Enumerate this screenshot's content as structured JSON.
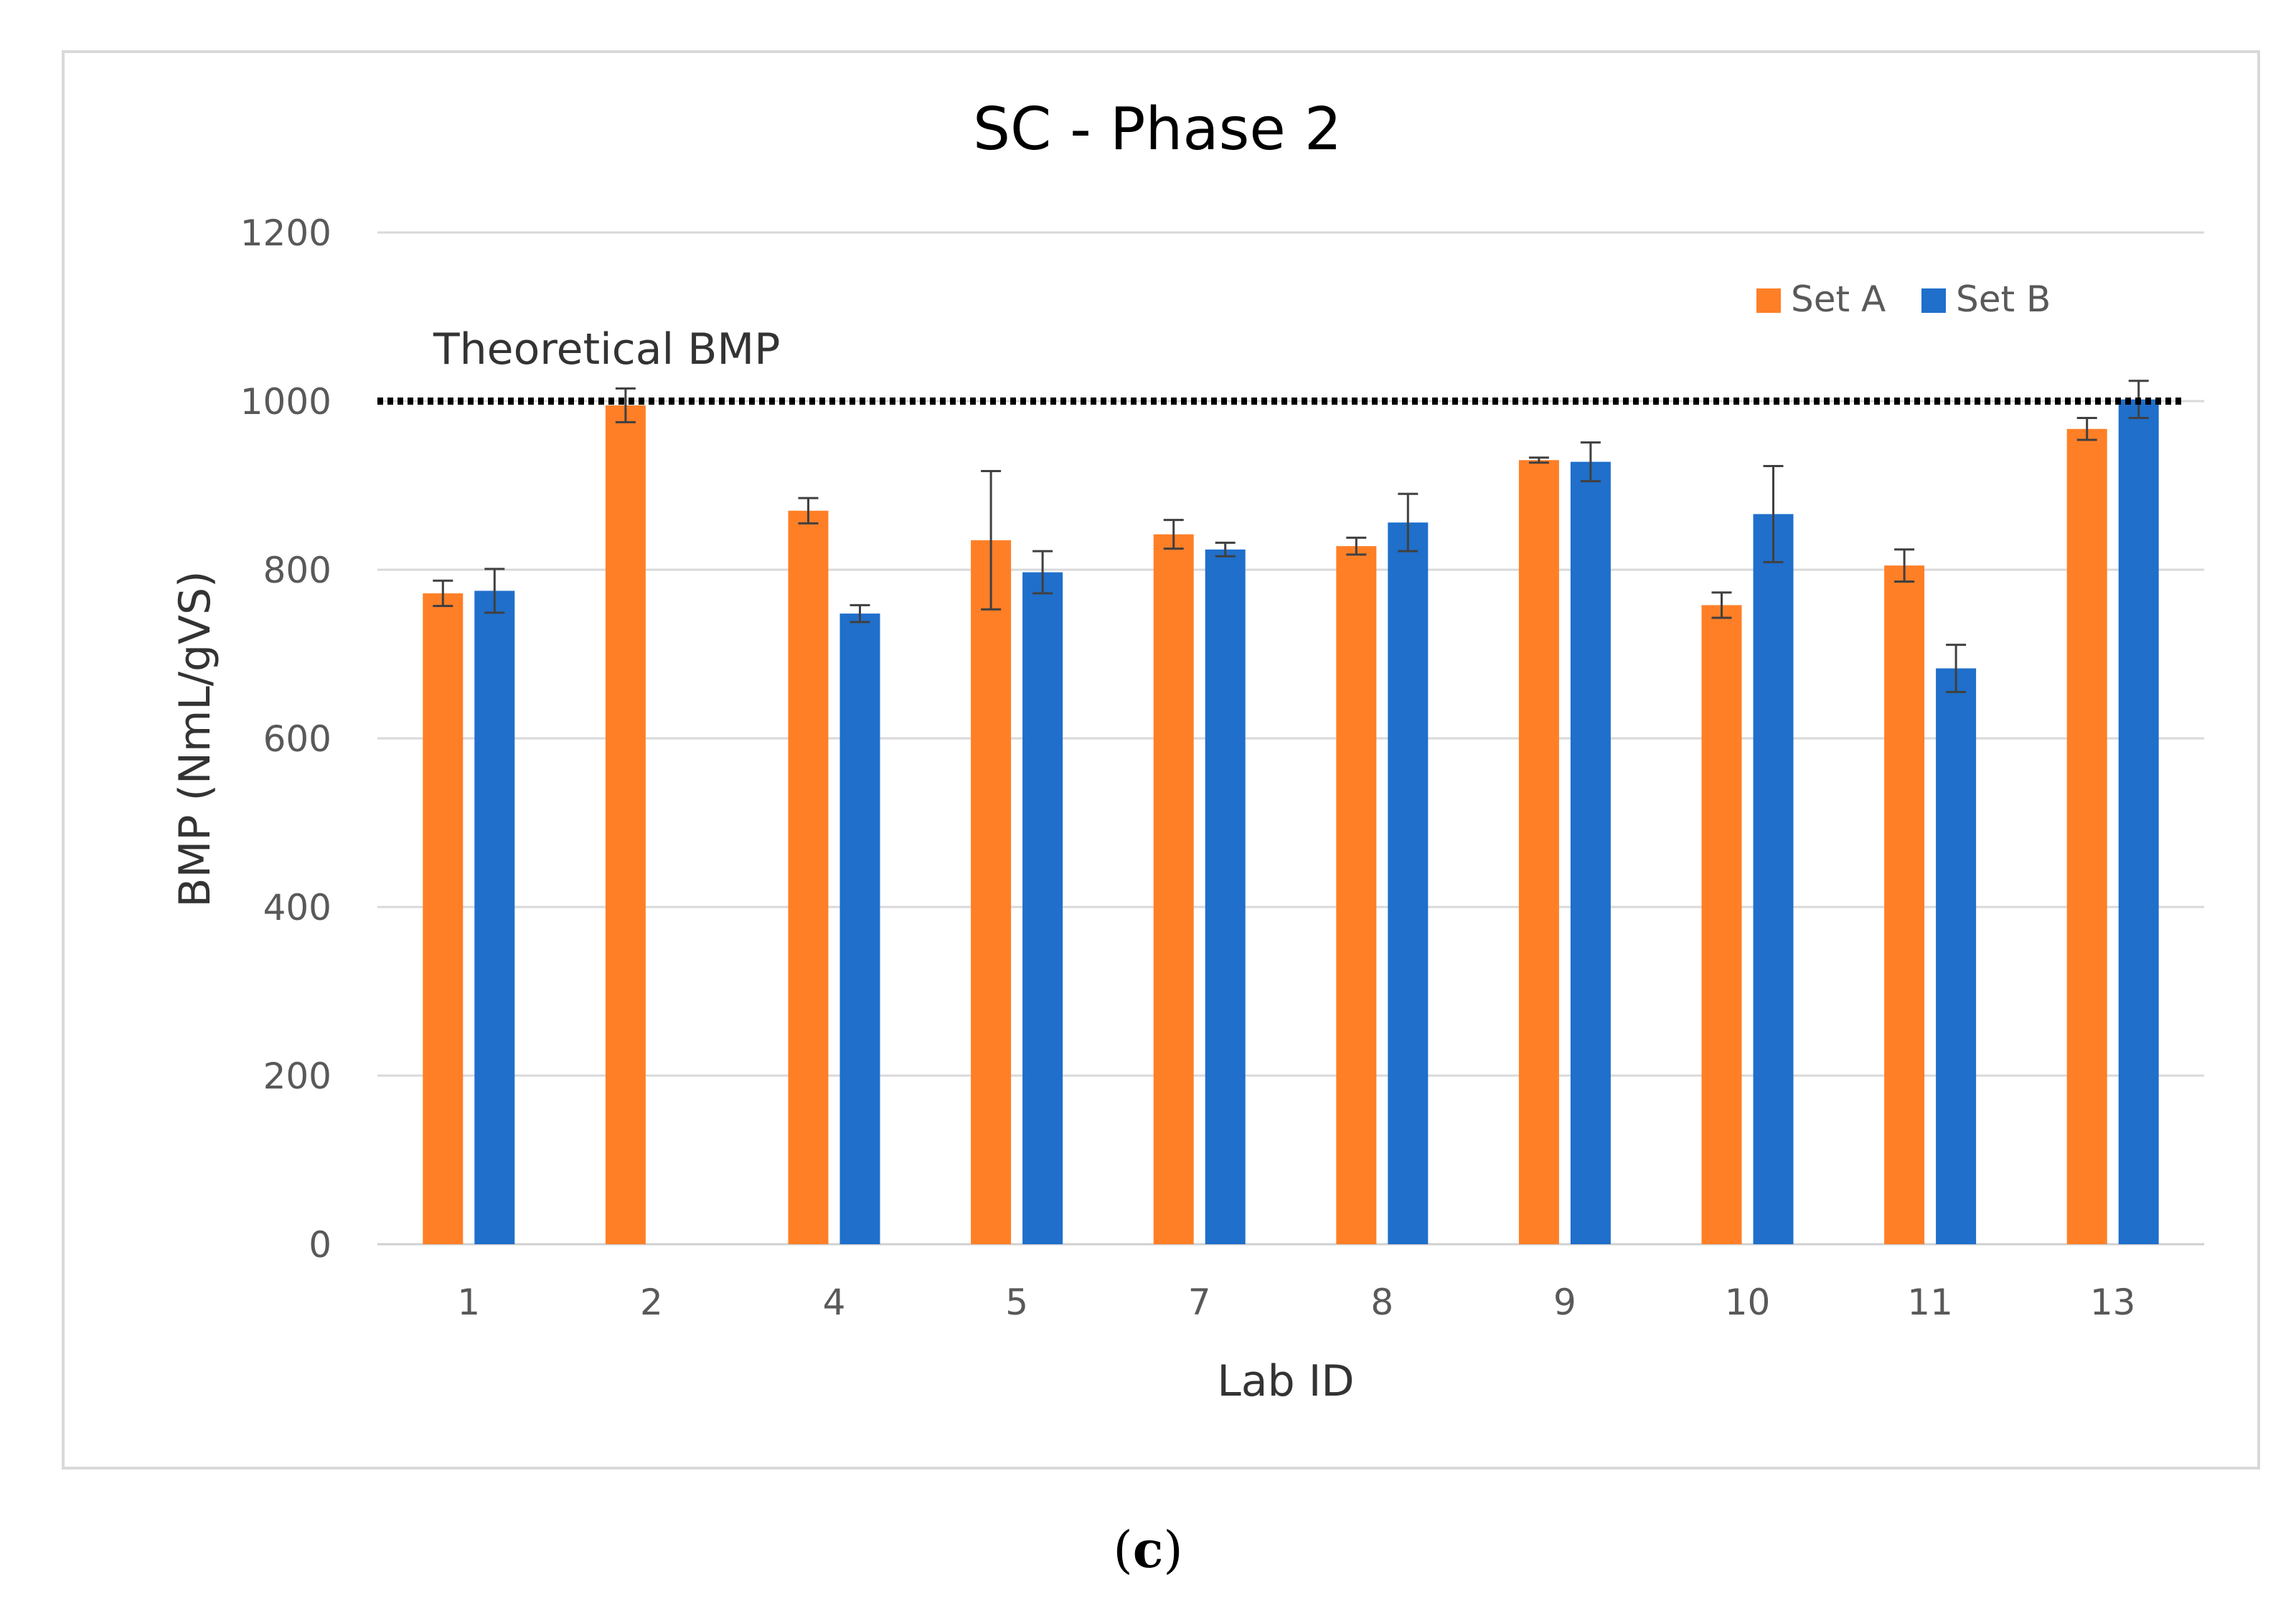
{
  "chart_data": {
    "type": "bar",
    "title": "SC - Phase 2",
    "xlabel": "Lab ID",
    "ylabel": "BMP (NmL/gVS)",
    "ylim": [
      0,
      1200
    ],
    "yticks": [
      0,
      200,
      400,
      600,
      800,
      1000,
      1200
    ],
    "grid": true,
    "legend_position": "top-right",
    "categories": [
      "1",
      "2",
      "4",
      "5",
      "7",
      "8",
      "9",
      "10",
      "11",
      "13"
    ],
    "series": [
      {
        "name": "Set A",
        "color": "#ff7f27",
        "values": [
          772,
          995,
          870,
          835,
          842,
          828,
          930,
          758,
          805,
          967
        ],
        "errors": [
          15,
          20,
          15,
          82,
          17,
          10,
          3,
          15,
          19,
          13
        ]
      },
      {
        "name": "Set B",
        "color": "#1f6fcb",
        "values": [
          775,
          null,
          748,
          797,
          824,
          856,
          928,
          866,
          683,
          1002
        ],
        "errors": [
          26,
          null,
          10,
          25,
          8,
          34,
          23,
          57,
          28,
          22
        ]
      }
    ],
    "reference_line": {
      "label": "Theoretical BMP",
      "value": 1000,
      "style": "dotted",
      "color": "#000000"
    }
  },
  "figure": {
    "panel_open": "(",
    "panel_letter": "c",
    "panel_close": ")"
  }
}
